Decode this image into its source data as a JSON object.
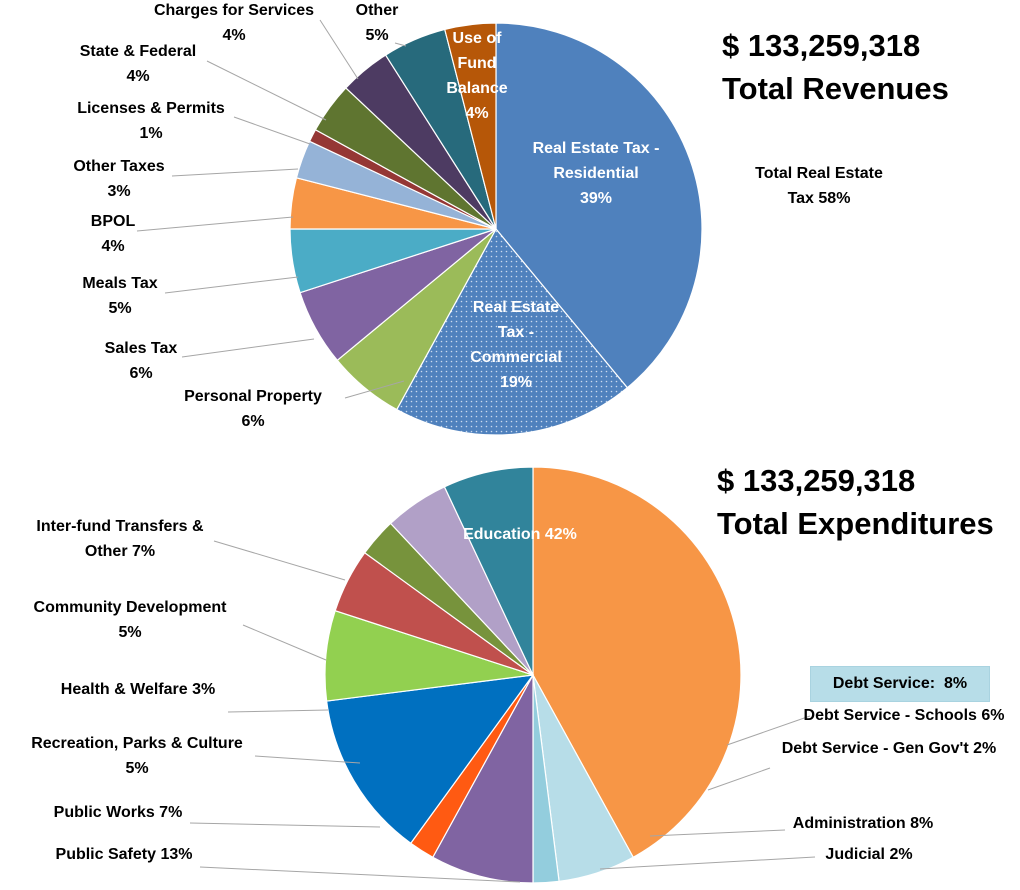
{
  "revenue": {
    "total_amount": "$ 133,259,318",
    "total_label": "Total Revenues",
    "group_label_line1": "Total Real Estate",
    "group_label_line2": "Tax 58%"
  },
  "expenditure": {
    "total_amount": "$ 133,259,318",
    "total_label": "Total Expenditures",
    "debt_box_label": "Debt Service:  8%"
  },
  "colors": {
    "rev_residential": "#4f81bd",
    "rev_commercial": "#4f81bd",
    "rev_personal_property": "#9bbb59",
    "rev_sales_tax": "#8064a2",
    "rev_meals_tax": "#4bacc6",
    "rev_bpol": "#f79646",
    "rev_other_taxes": "#95b3d7",
    "rev_licenses": "#953735",
    "rev_state_federal": "#5f7530",
    "rev_charges": "#4d3b62",
    "rev_other": "#276a7c",
    "rev_fund_balance": "#b65708",
    "exp_education": "#f79646",
    "exp_debt_schools": "#b7dde8",
    "exp_debt_gen": "#93cddd",
    "exp_administration": "#8064a2",
    "exp_judicial": "#ff5a12",
    "exp_public_safety": "#0070c0",
    "exp_public_works": "#92d050",
    "exp_recreation": "#c0504d",
    "exp_health": "#77933c",
    "exp_community": "#b1a0c7",
    "exp_interfund": "#31849b"
  },
  "chart_data": [
    {
      "type": "pie",
      "title": "Total Revenues",
      "start_angle_deg": 0,
      "direction": "clockwise",
      "labels": [
        "Real Estate Tax - Residential",
        "Real Estate Tax - Commercial",
        "Personal Property",
        "Sales Tax",
        "Meals Tax",
        "BPOL",
        "Other Taxes",
        "Licenses & Permits",
        "State & Federal",
        "Charges for Services",
        "Other",
        "Use of Fund Balance"
      ],
      "values": [
        39,
        19,
        6,
        6,
        5,
        4,
        3,
        1,
        4,
        4,
        5,
        4
      ],
      "value_labels": [
        "39%",
        "19%",
        "6%",
        "6%",
        "5%",
        "4%",
        "3%",
        "1%",
        "4%",
        "4%",
        "5%",
        "4%"
      ],
      "label_lines": [
        [
          "Real Estate Tax -",
          "Residential",
          "39%"
        ],
        [
          "Real Estate",
          "Tax -",
          "Commercial",
          "19%"
        ],
        [
          "Personal Property",
          "6%"
        ],
        [
          "Sales Tax",
          "6%"
        ],
        [
          "Meals Tax",
          "5%"
        ],
        [
          "BPOL",
          "4%"
        ],
        [
          "Other Taxes",
          "3%"
        ],
        [
          "Licenses & Permits",
          "1%"
        ],
        [
          "State & Federal",
          "4%"
        ],
        [
          "Charges for Services",
          "4%"
        ],
        [
          "Other",
          "5%"
        ],
        [
          "Use of",
          "Fund",
          "Balance",
          "4%"
        ]
      ],
      "color_keys": [
        "rev_residential",
        "rev_commercial",
        "rev_personal_property",
        "rev_sales_tax",
        "rev_meals_tax",
        "rev_bpol",
        "rev_other_taxes",
        "rev_licenses",
        "rev_state_federal",
        "rev_charges",
        "rev_other",
        "rev_fund_balance"
      ],
      "patterns": [
        "none",
        "dots",
        "none",
        "none",
        "none",
        "none",
        "none",
        "none",
        "none",
        "none",
        "none",
        "none"
      ]
    },
    {
      "type": "pie",
      "title": "Total Expenditures",
      "start_angle_deg": 0,
      "direction": "clockwise",
      "labels": [
        "Education",
        "Debt Service - Schools",
        "Debt Service - Gen Gov't",
        "Administration",
        "Judicial",
        "Public Safety",
        "Public Works",
        "Recreation, Parks & Culture",
        "Health & Welfare",
        "Community Development",
        "Inter-fund Transfers & Other"
      ],
      "values": [
        42,
        6,
        2,
        8,
        2,
        13,
        7,
        5,
        3,
        5,
        7
      ],
      "label_lines": [
        [
          "Education 42%"
        ],
        [
          "Debt Service - Schools 6%"
        ],
        [
          "Debt Service - Gen Gov't 2%"
        ],
        [
          "Administration 8%"
        ],
        [
          "Judicial 2%"
        ],
        [
          "Public Safety 13%"
        ],
        [
          "Public Works 7%"
        ],
        [
          "Recreation, Parks & Culture",
          "5%"
        ],
        [
          "Health & Welfare 3%"
        ],
        [
          "Community Development",
          "5%"
        ],
        [
          "Inter-fund Transfers &",
          "Other 7%"
        ]
      ],
      "color_keys": [
        "exp_education",
        "exp_debt_schools",
        "exp_debt_gen",
        "exp_administration",
        "exp_judicial",
        "exp_public_safety",
        "exp_public_works",
        "exp_recreation",
        "exp_health",
        "exp_community",
        "exp_interfund"
      ],
      "patterns": [
        "none",
        "none",
        "none",
        "none",
        "none",
        "none",
        "none",
        "none",
        "none",
        "none",
        "none"
      ]
    }
  ]
}
